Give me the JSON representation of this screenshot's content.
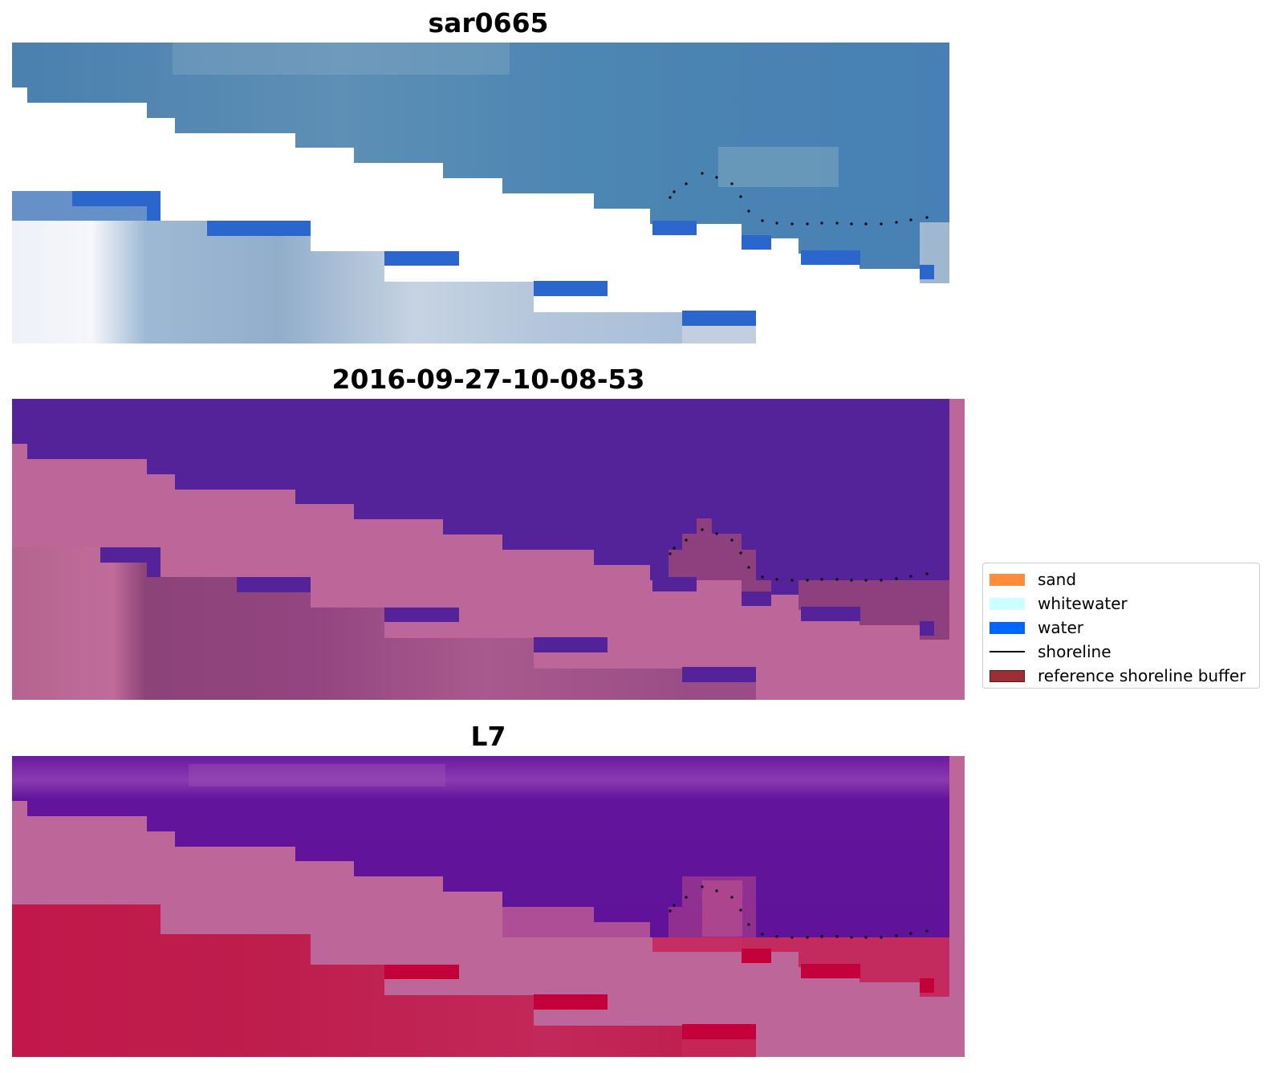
{
  "panels": [
    {
      "title": "sar0665"
    },
    {
      "title": "2016-09-27-10-08-53"
    },
    {
      "title": "L7"
    }
  ],
  "legend": {
    "items": [
      {
        "label": "sand",
        "color": "#ff8c3c",
        "kind": "patch"
      },
      {
        "label": "whitewater",
        "color": "#ccffff",
        "kind": "patch"
      },
      {
        "label": "water",
        "color": "#0066ff",
        "kind": "patch"
      },
      {
        "label": "shoreline",
        "color": "#000000",
        "kind": "line"
      },
      {
        "label": "reference shoreline buffer",
        "color": "#9b2f33",
        "kind": "patch"
      }
    ]
  },
  "colors": {
    "rgb_sea": "#467fae",
    "rgb_land_pale": "#c8d6e6",
    "rgb_water_pixel": "#2a66cc",
    "class_sea": "#54239a",
    "class_buffer_pink": "#bd6699",
    "class_land": "#93447f",
    "mndwi_sea": "#62129c",
    "mndwi_land": "#c01a45"
  }
}
